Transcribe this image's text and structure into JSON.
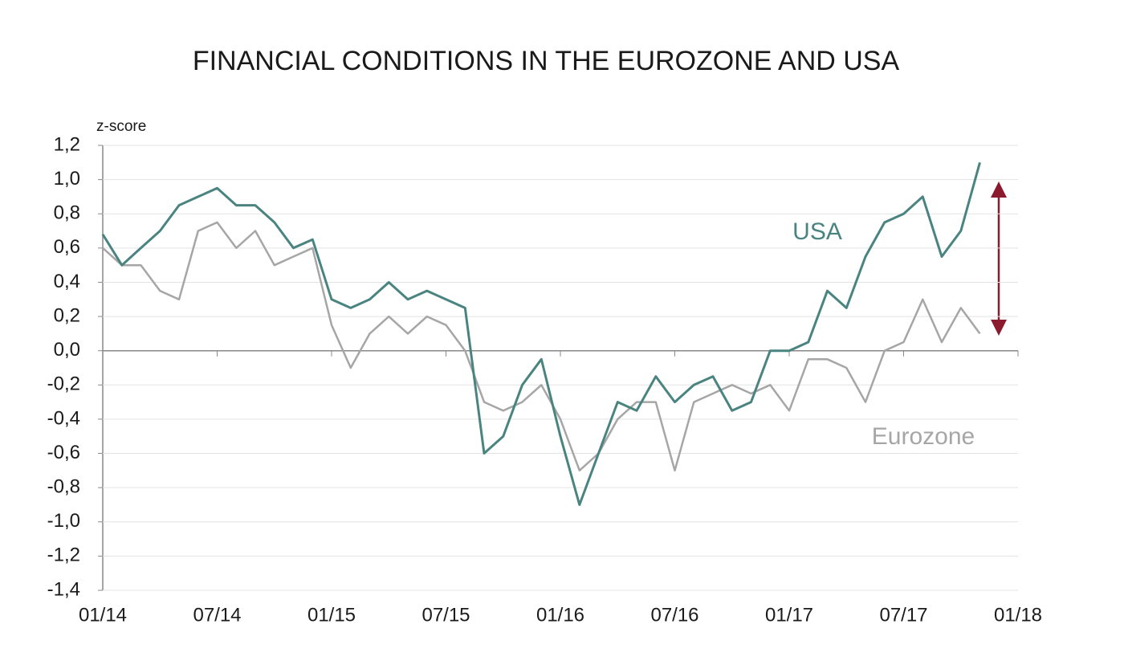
{
  "chart_data": {
    "type": "line",
    "title": "FINANCIAL CONDITIONS IN THE EUROZONE AND USA",
    "y_label": "z-score",
    "x": [
      "2014-01",
      "2014-02",
      "2014-03",
      "2014-04",
      "2014-05",
      "2014-06",
      "2014-07",
      "2014-08",
      "2014-09",
      "2014-10",
      "2014-11",
      "2014-12",
      "2015-01",
      "2015-02",
      "2015-03",
      "2015-04",
      "2015-05",
      "2015-06",
      "2015-07",
      "2015-08",
      "2015-09",
      "2015-10",
      "2015-11",
      "2015-12",
      "2016-01",
      "2016-02",
      "2016-03",
      "2016-04",
      "2016-05",
      "2016-06",
      "2016-07",
      "2016-08",
      "2016-09",
      "2016-10",
      "2016-11",
      "2016-12",
      "2017-01",
      "2017-02",
      "2017-03",
      "2017-04",
      "2017-05",
      "2017-06",
      "2017-07",
      "2017-08",
      "2017-09",
      "2017-10",
      "2017-11"
    ],
    "series": [
      {
        "name": "USA",
        "color": "#4a8480",
        "values": [
          0.68,
          0.5,
          0.6,
          0.7,
          0.85,
          0.9,
          0.95,
          0.85,
          0.85,
          0.75,
          0.6,
          0.65,
          0.3,
          0.25,
          0.3,
          0.4,
          0.3,
          0.35,
          0.3,
          0.25,
          -0.6,
          -0.5,
          -0.2,
          -0.05,
          -0.5,
          -0.9,
          -0.6,
          -0.3,
          -0.35,
          -0.15,
          -0.3,
          -0.2,
          -0.15,
          -0.35,
          -0.3,
          0.0,
          0.0,
          0.05,
          0.35,
          0.25,
          0.55,
          0.75,
          0.8,
          0.9,
          0.55,
          0.7,
          1.1
        ]
      },
      {
        "name": "Eurozone",
        "color": "#a6a6a6",
        "values": [
          0.6,
          0.5,
          0.5,
          0.35,
          0.3,
          0.7,
          0.75,
          0.6,
          0.7,
          0.5,
          0.55,
          0.6,
          0.15,
          -0.1,
          0.1,
          0.2,
          0.1,
          0.2,
          0.15,
          0.0,
          -0.3,
          -0.35,
          -0.3,
          -0.2,
          -0.4,
          -0.7,
          -0.6,
          -0.4,
          -0.3,
          -0.3,
          -0.7,
          -0.3,
          -0.25,
          -0.2,
          -0.25,
          -0.2,
          -0.35,
          -0.05,
          -0.05,
          -0.1,
          -0.3,
          0.0,
          0.05,
          0.3,
          0.05,
          0.25,
          0.1
        ]
      }
    ],
    "xlim": [
      "2014-01",
      "2018-01"
    ],
    "xticks": [
      {
        "value": "2014-01",
        "label": "01/14"
      },
      {
        "value": "2014-07",
        "label": "07/14"
      },
      {
        "value": "2015-01",
        "label": "01/15"
      },
      {
        "value": "2015-07",
        "label": "07/15"
      },
      {
        "value": "2016-01",
        "label": "01/16"
      },
      {
        "value": "2016-07",
        "label": "07/16"
      },
      {
        "value": "2017-01",
        "label": "01/17"
      },
      {
        "value": "2017-07",
        "label": "07/17"
      },
      {
        "value": "2018-01",
        "label": "01/18"
      }
    ],
    "ylim": [
      -1.4,
      1.2
    ],
    "yticks": [
      {
        "value": -1.4,
        "label": "-1,4"
      },
      {
        "value": -1.2,
        "label": "-1,2"
      },
      {
        "value": -1.0,
        "label": "-1,0"
      },
      {
        "value": -0.8,
        "label": "-0,8"
      },
      {
        "value": -0.6,
        "label": "-0,6"
      },
      {
        "value": -0.4,
        "label": "-0,4"
      },
      {
        "value": -0.2,
        "label": "-0,2"
      },
      {
        "value": 0,
        "label": "0,0"
      },
      {
        "value": 0.2,
        "label": "0,2"
      },
      {
        "value": 0.4,
        "label": "0,4"
      },
      {
        "value": 0.6,
        "label": "0,6"
      },
      {
        "value": 0.8,
        "label": "0,8"
      },
      {
        "value": 1.0,
        "label": "1,0"
      },
      {
        "value": 1.2,
        "label": "1,2"
      }
    ],
    "grid": true
  }
}
